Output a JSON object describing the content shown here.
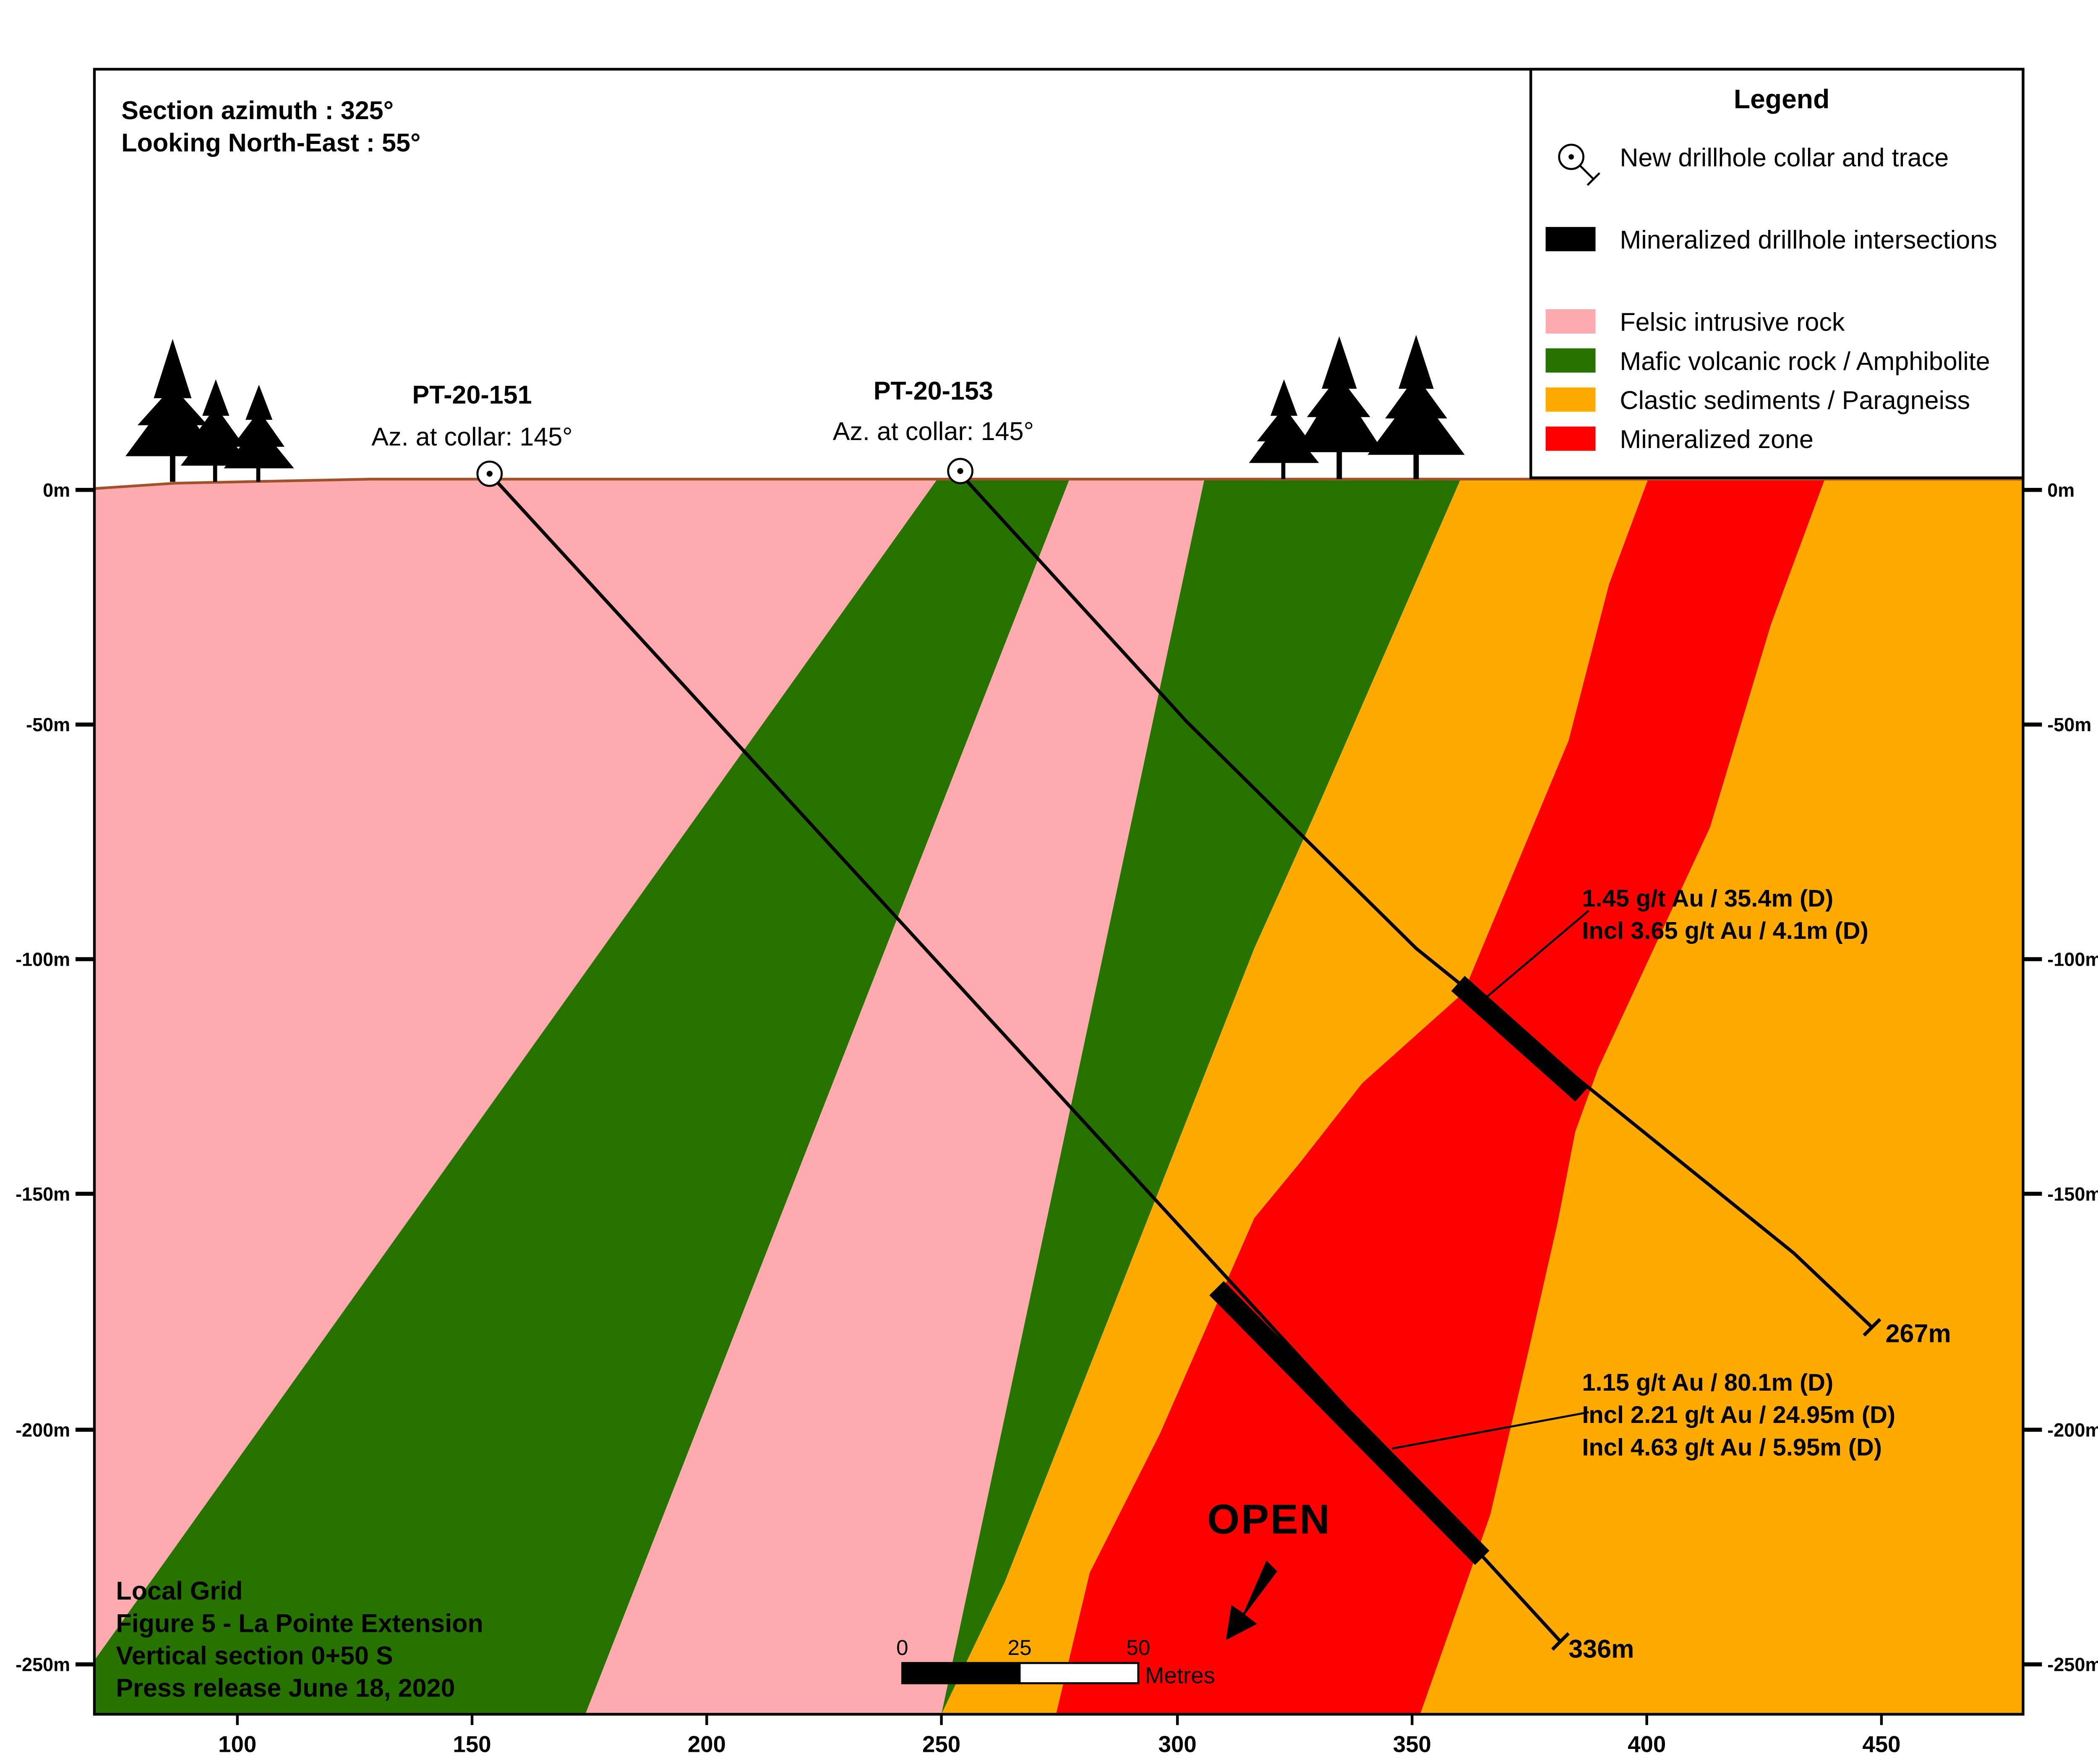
{
  "header": {
    "azimuth": "Section azimuth : 325°",
    "looking": "Looking North-East : 55°"
  },
  "legend": {
    "title": "Legend",
    "items": [
      {
        "label": "New drillhole collar and trace",
        "symbol": "collar-trace"
      },
      {
        "label": "Mineralized drillhole intersections",
        "symbol": "intersection",
        "color": "#000000"
      },
      {
        "label": "Felsic intrusive rock",
        "symbol": "swatch",
        "color": "#FFAAAE"
      },
      {
        "label": "Mafic volcanic rock / Amphibolite",
        "symbol": "swatch",
        "color": "#267300"
      },
      {
        "label": "Clastic sediments / Paragneiss",
        "symbol": "swatch",
        "color": "#FFAA00"
      },
      {
        "label": "Mineralized zone",
        "symbol": "swatch",
        "color": "#FF0000"
      }
    ]
  },
  "holes": [
    {
      "name": "PT-20-151",
      "azimuth": "Az. at collar: 145°",
      "end_label": "336m"
    },
    {
      "name": "PT-20-153",
      "azimuth": "Az. at collar: 145°",
      "end_label": "267m"
    }
  ],
  "intersections": [
    {
      "lines": [
        "1.45 g/t Au / 35.4m (D)",
        "Incl 3.65 g/t Au / 4.1m (D)"
      ]
    },
    {
      "lines": [
        "1.15 g/t Au / 80.1m (D)",
        "Incl 2.21 g/t Au / 24.95m (D)",
        "Incl 4.63 g/t Au / 5.95m (D)"
      ]
    }
  ],
  "open_label": "OPEN",
  "scale_bar": {
    "ticks": [
      "0",
      "25",
      "50"
    ],
    "unit": "Metres"
  },
  "footer": {
    "lines": [
      "Local Grid",
      "Figure 5 - La Pointe Extension",
      "Vertical section 0+50 S",
      "Press release June 18, 2020"
    ]
  },
  "axes": {
    "x_ticks": [
      "100",
      "150",
      "200",
      "250",
      "300",
      "350",
      "400",
      "450"
    ],
    "y_ticks": [
      "0m",
      "-50m",
      "-100m",
      "-150m",
      "-200m",
      "-250m"
    ]
  },
  "colors": {
    "felsic": "#FFAAAE",
    "mafic": "#267300",
    "clastic": "#FFAA00",
    "mineralized": "#FF0000",
    "surface_line": "#A0522D"
  }
}
